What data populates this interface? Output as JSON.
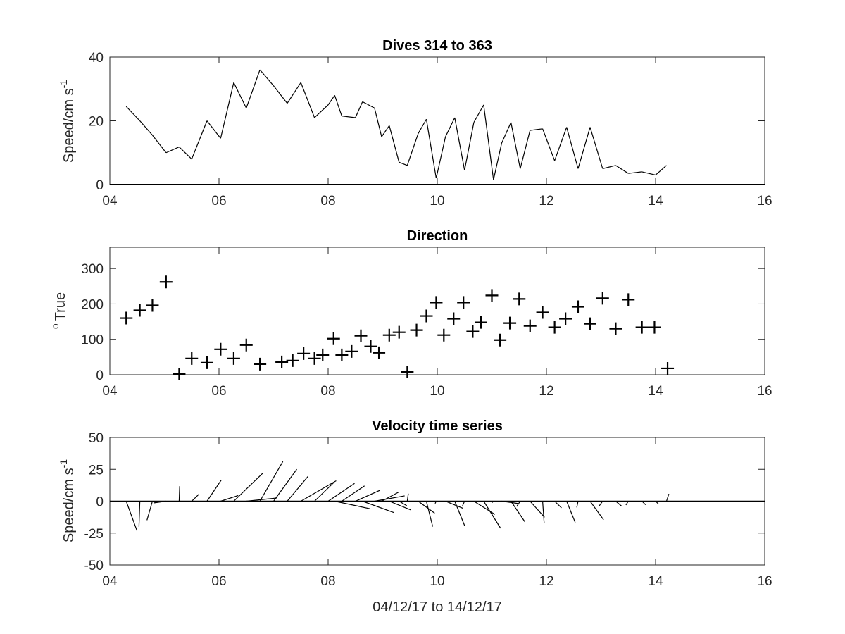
{
  "chart_data": [
    {
      "type": "line",
      "title": "Dives 314 to 363",
      "ylabel": "Speed/cm s",
      "ylabel_superscript": "-1",
      "xlabel": "",
      "xlim": [
        4,
        16
      ],
      "ylim": [
        0,
        40
      ],
      "xticks": [
        "04",
        "06",
        "08",
        "10",
        "12",
        "14",
        "16"
      ],
      "yticks": [
        "0",
        "20",
        "40"
      ],
      "grid": false,
      "series": [
        {
          "x": [
            4.3,
            4.55,
            4.78,
            5.03,
            5.27,
            5.5,
            5.78,
            6.03,
            6.27,
            6.5,
            6.75,
            7.0,
            7.25,
            7.5,
            7.75,
            8.0,
            8.12,
            8.25,
            8.5,
            8.63,
            8.85,
            8.98,
            9.12,
            9.3,
            9.45,
            9.65,
            9.8,
            9.98,
            10.15,
            10.32,
            10.5,
            10.67,
            10.85,
            11.03,
            11.18,
            11.35,
            11.52,
            11.7,
            11.93,
            12.15,
            12.37,
            12.58,
            12.8,
            13.03,
            13.27,
            13.5,
            13.75,
            14.0,
            14.2
          ],
          "values": [
            24.5,
            20,
            15.5,
            10,
            11.8,
            8,
            20,
            14.5,
            32,
            24,
            36,
            31,
            25.5,
            32,
            21,
            25,
            28,
            21.5,
            21,
            26,
            24,
            15,
            18.5,
            7,
            6,
            16,
            20.5,
            2,
            15,
            21,
            4.5,
            19.5,
            25,
            1.5,
            13,
            19.5,
            5,
            17,
            17.5,
            7.5,
            18,
            5,
            18,
            5,
            6,
            3.5,
            4,
            3,
            6
          ]
        }
      ]
    },
    {
      "type": "scatter",
      "title": "Direction",
      "ylabel": "True",
      "ylabel_prefix": "o",
      "xlabel": "",
      "xlim": [
        4,
        16
      ],
      "ylim": [
        0,
        360
      ],
      "xticks": [
        "04",
        "06",
        "08",
        "10",
        "12",
        "14",
        "16"
      ],
      "yticks": [
        "0",
        "100",
        "200",
        "300"
      ],
      "marker": "+",
      "grid": false,
      "series": [
        {
          "x": [
            4.3,
            4.55,
            4.78,
            5.03,
            5.27,
            5.5,
            5.78,
            6.03,
            6.27,
            6.5,
            6.75,
            7.15,
            7.35,
            7.55,
            7.75,
            7.9,
            8.1,
            8.25,
            8.43,
            8.6,
            8.78,
            8.93,
            9.12,
            9.3,
            9.45,
            9.62,
            9.8,
            9.98,
            10.12,
            10.3,
            10.48,
            10.65,
            10.8,
            11.0,
            11.15,
            11.33,
            11.5,
            11.7,
            11.93,
            12.15,
            12.35,
            12.58,
            12.8,
            13.03,
            13.27,
            13.5,
            13.75,
            13.98,
            14.22
          ],
          "values": [
            160,
            182,
            196,
            262,
            2,
            46,
            34,
            72,
            46,
            84,
            30,
            36,
            40,
            60,
            46,
            56,
            102,
            56,
            66,
            110,
            80,
            62,
            112,
            120,
            8,
            126,
            166,
            204,
            112,
            158,
            204,
            122,
            148,
            224,
            98,
            146,
            214,
            138,
            176,
            134,
            158,
            192,
            144,
            216,
            130,
            212,
            134,
            134,
            18
          ]
        }
      ]
    },
    {
      "type": "quiver",
      "title": "Velocity time series",
      "ylabel": "Speed/cm s",
      "ylabel_superscript": "-1",
      "xlabel": "04/12/17 to 14/12/17",
      "xlim": [
        4,
        16
      ],
      "ylim": [
        -50,
        50
      ],
      "xticks": [
        "04",
        "06",
        "08",
        "10",
        "12",
        "14",
        "16"
      ],
      "yticks": [
        "50",
        "25",
        "0",
        "-25",
        "-50"
      ],
      "grid": false,
      "vectors_source": "speed and direction of panels 1 and 2, one stick per dive"
    }
  ]
}
